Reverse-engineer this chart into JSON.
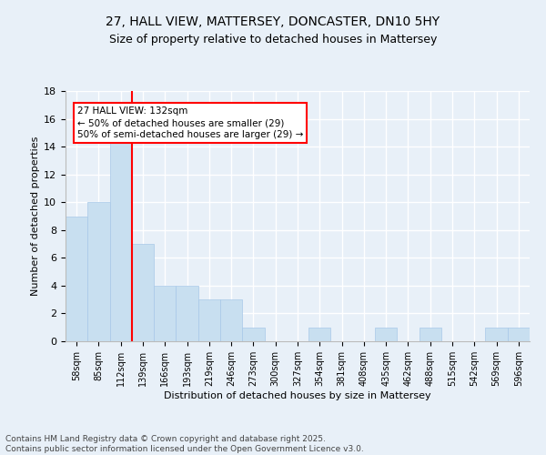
{
  "title_line1": "27, HALL VIEW, MATTERSEY, DONCASTER, DN10 5HY",
  "title_line2": "Size of property relative to detached houses in Mattersey",
  "xlabel": "Distribution of detached houses by size in Mattersey",
  "ylabel": "Number of detached properties",
  "categories": [
    "58sqm",
    "85sqm",
    "112sqm",
    "139sqm",
    "166sqm",
    "193sqm",
    "219sqm",
    "246sqm",
    "273sqm",
    "300sqm",
    "327sqm",
    "354sqm",
    "381sqm",
    "408sqm",
    "435sqm",
    "462sqm",
    "488sqm",
    "515sqm",
    "542sqm",
    "569sqm",
    "596sqm"
  ],
  "values": [
    9,
    10,
    15,
    7,
    4,
    4,
    3,
    3,
    1,
    0,
    0,
    1,
    0,
    0,
    1,
    0,
    1,
    0,
    0,
    1,
    1
  ],
  "bar_color": "#c8dff0",
  "bar_edge_color": "#a8c8e8",
  "red_line_x": 2.5,
  "annotation_text": "27 HALL VIEW: 132sqm\n← 50% of detached houses are smaller (29)\n50% of semi-detached houses are larger (29) →",
  "annotation_box_color": "white",
  "annotation_box_edge": "red",
  "ylim": [
    0,
    18
  ],
  "yticks": [
    0,
    2,
    4,
    6,
    8,
    10,
    12,
    14,
    16,
    18
  ],
  "footnote": "Contains HM Land Registry data © Crown copyright and database right 2025.\nContains public sector information licensed under the Open Government Licence v3.0.",
  "bg_color": "#e8f0f8",
  "plot_bg_color": "#e8f0f8",
  "grid_color": "white",
  "title_fontsize": 10,
  "subtitle_fontsize": 9,
  "footnote_fontsize": 6.5
}
